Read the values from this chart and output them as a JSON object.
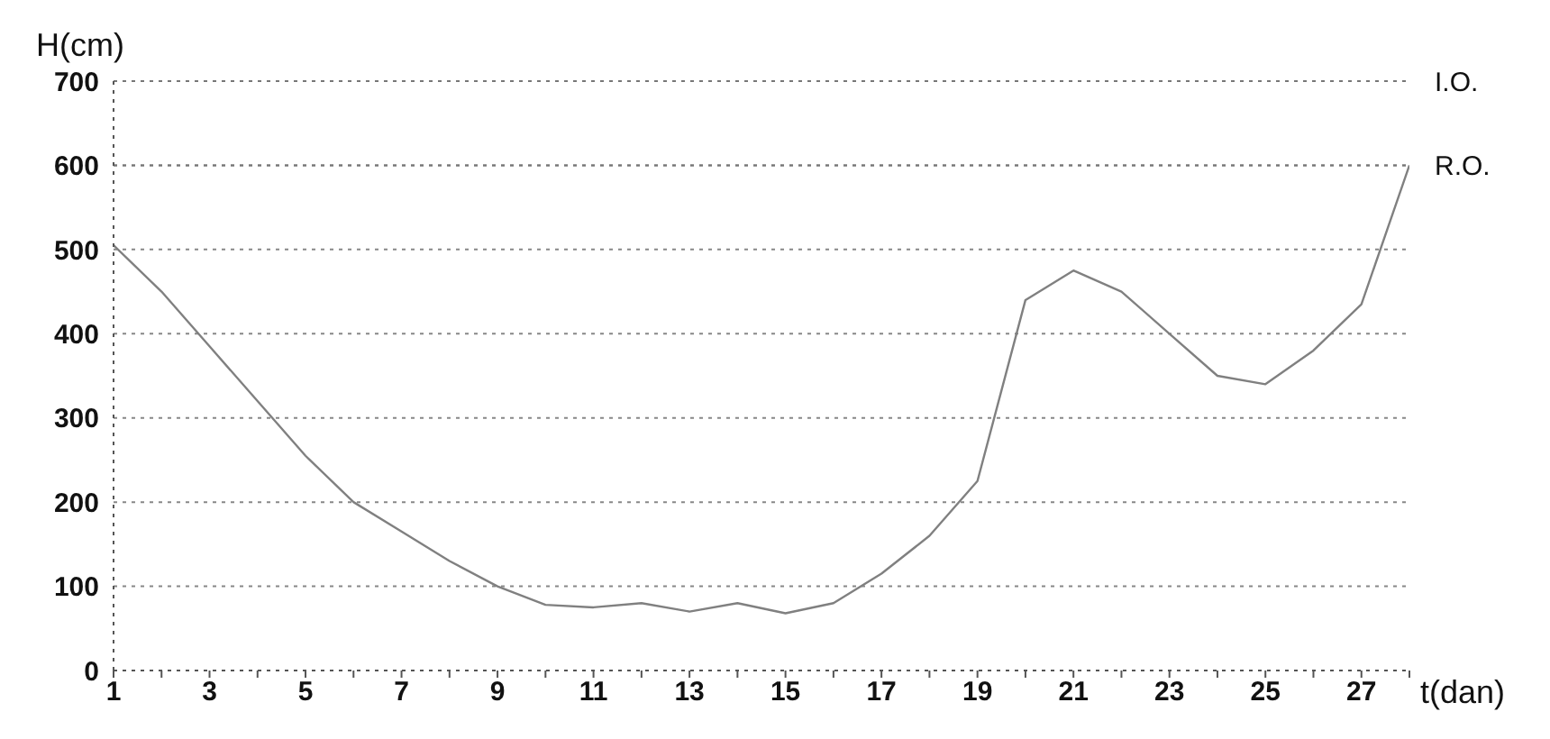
{
  "chart_data": {
    "type": "line",
    "xlabel": "t(dan)",
    "ylabel": "H(cm)",
    "x": [
      1,
      2,
      3,
      4,
      5,
      6,
      7,
      8,
      9,
      10,
      11,
      12,
      13,
      14,
      15,
      16,
      17,
      18,
      19,
      20,
      21,
      22,
      23,
      24,
      25,
      26,
      27,
      28
    ],
    "series": [
      {
        "color": "#808080",
        "values": [
          505,
          450,
          385,
          320,
          255,
          200,
          165,
          130,
          100,
          78,
          75,
          80,
          70,
          80,
          68,
          80,
          115,
          160,
          225,
          440,
          475,
          450,
          400,
          350,
          340,
          380,
          435,
          600
        ]
      }
    ],
    "xlim": [
      1,
      28
    ],
    "xticks": [
      1,
      {
        "value": 2,
        "label": null
      },
      3,
      {
        "value": 4,
        "label": null
      },
      5,
      {
        "value": 6,
        "label": null
      },
      7,
      {
        "value": 8,
        "label": null
      },
      9,
      {
        "value": 10,
        "label": null
      },
      11,
      {
        "value": 12,
        "label": null
      },
      13,
      {
        "value": 14,
        "label": null
      },
      15,
      {
        "value": 16,
        "label": null
      },
      17,
      {
        "value": 18,
        "label": null
      },
      19,
      {
        "value": 20,
        "label": null
      },
      21,
      {
        "value": 22,
        "label": null
      },
      23,
      {
        "value": 24,
        "label": null
      },
      25,
      {
        "value": 26,
        "label": null
      },
      27,
      {
        "value": 28,
        "label": null
      }
    ],
    "ylim": [
      0,
      700
    ],
    "yticks": [
      0,
      100,
      200,
      300,
      400,
      500,
      600,
      700
    ],
    "grid": "y",
    "marker": "none",
    "line_style": "solid",
    "ref_lines": [
      {
        "axis": "y",
        "value": 700,
        "label": "I.O.",
        "color": "#777777",
        "line_style": "dotted"
      },
      {
        "axis": "y",
        "value": 600,
        "label": "R.O.",
        "color": "#777777",
        "line_style": "dotted"
      }
    ]
  }
}
